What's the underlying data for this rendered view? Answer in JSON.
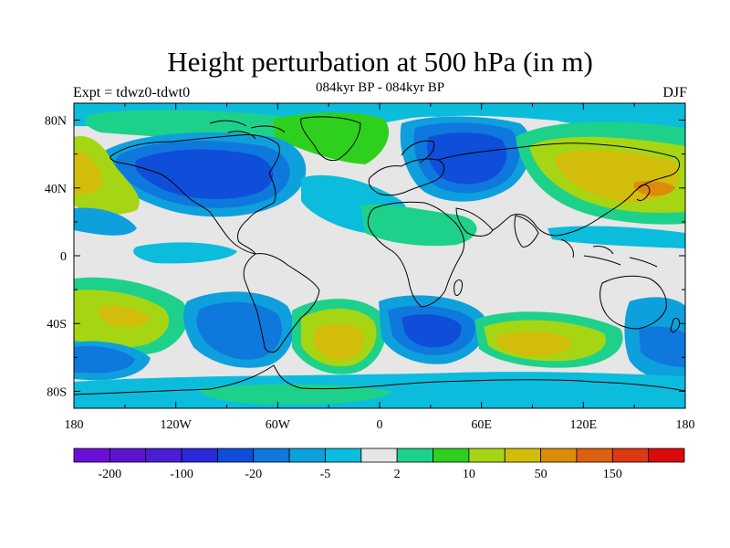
{
  "header": {
    "title": "Height perturbation at 500 hPa (in m)",
    "subtitle": "084kyr BP - 084kyr BP",
    "left_label": "Expt = tdwz0-tdwt0",
    "right_label": "DJF"
  },
  "map": {
    "projection": "cylindrical equidistant",
    "lon_range": [
      -180,
      180
    ],
    "lat_range": [
      -90,
      90
    ],
    "lat_ticks": [
      "80N",
      "40N",
      "0",
      "40S",
      "80S"
    ],
    "lat_tick_values": [
      80,
      40,
      0,
      -40,
      -80
    ],
    "lon_ticks": [
      "180",
      "120W",
      "60W",
      "0",
      "60E",
      "120E",
      "180"
    ],
    "lon_tick_values": [
      -180,
      -120,
      -60,
      0,
      60,
      120,
      180
    ],
    "background_color": "#e6e6e6",
    "coastline_color": "#000000"
  },
  "colorbar": {
    "colors": [
      "#6b0fd6",
      "#5d14d0",
      "#4a1ed4",
      "#2a28d8",
      "#0f4ed9",
      "#0f78dc",
      "#0ea0dc",
      "#0cbcdc",
      "#e6e6e6",
      "#1ed18a",
      "#2ed01e",
      "#a6d613",
      "#d3bd0b",
      "#dc8c0b",
      "#dc6010",
      "#dc3814",
      "#dc0a0a"
    ],
    "labels": [
      "-200",
      "-100",
      "-20",
      "-5",
      "2",
      "10",
      "50",
      "150"
    ],
    "label_positions_boundary_index": [
      1,
      3,
      5,
      7,
      9,
      11,
      13,
      15
    ]
  }
}
